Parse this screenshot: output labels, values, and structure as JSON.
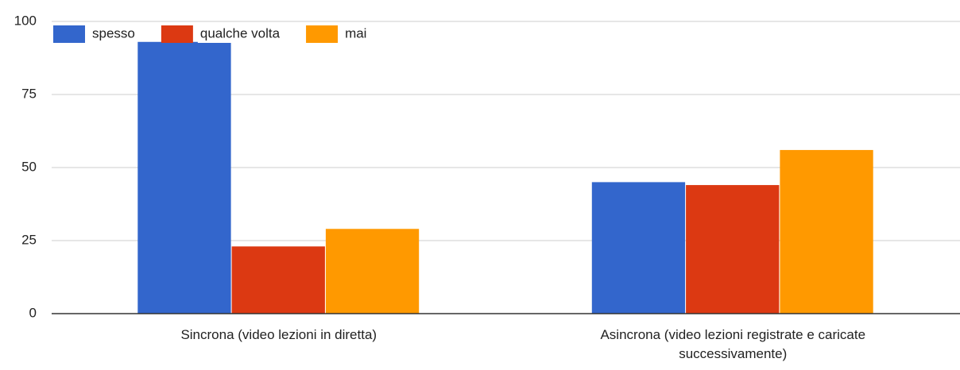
{
  "chart_data": {
    "type": "bar",
    "categories": [
      "Sincrona (video lezioni in diretta)",
      "Asincrona (video lezioni registrate e caricate successivamente)"
    ],
    "series": [
      {
        "name": "spesso",
        "color": "#3366cc",
        "values": [
          93,
          45
        ]
      },
      {
        "name": "qualche volta",
        "color": "#dc3912",
        "values": [
          23,
          44
        ]
      },
      {
        "name": "mai",
        "color": "#ff9900",
        "values": [
          29,
          56
        ]
      }
    ],
    "ylim": [
      0,
      100
    ],
    "yticks": [
      0,
      25,
      50,
      75,
      100
    ],
    "grid": true,
    "legend": "top-left"
  }
}
